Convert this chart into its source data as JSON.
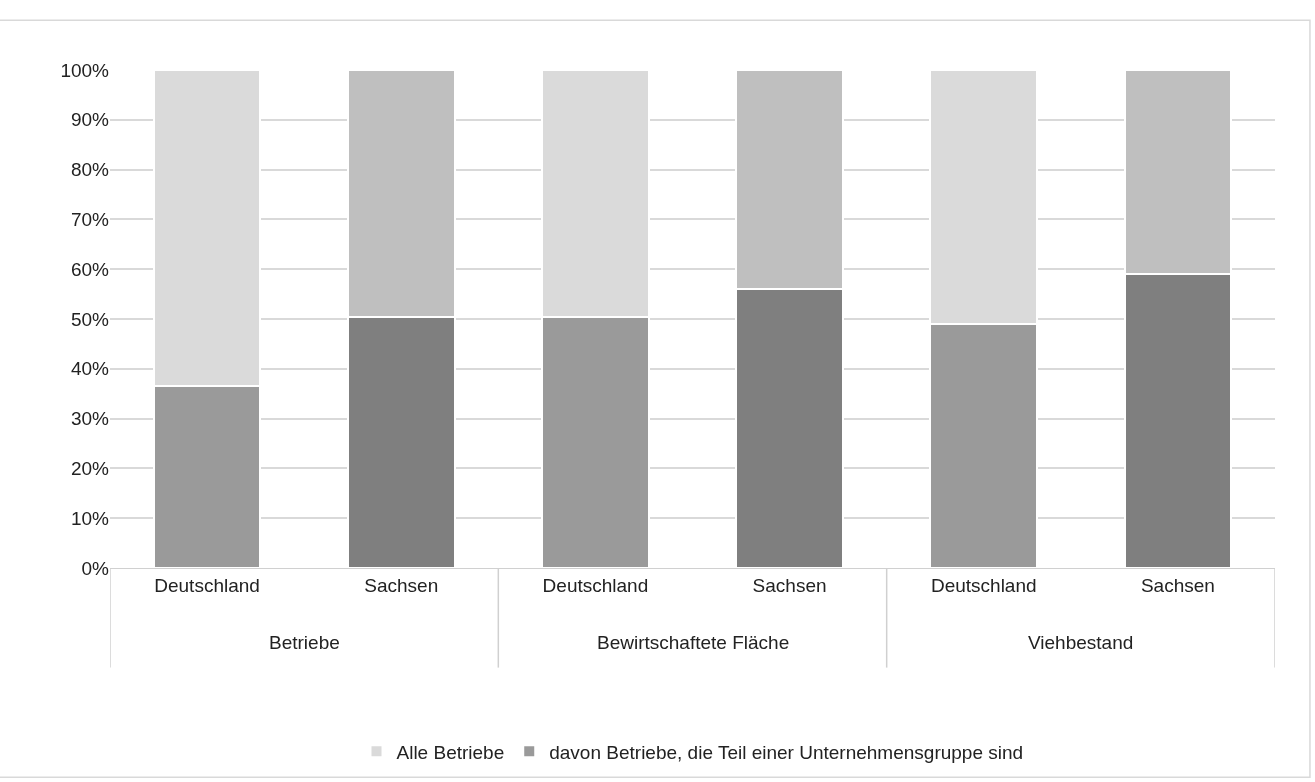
{
  "chart_data": {
    "type": "bar",
    "stacked": true,
    "categories": [
      "Deutschland",
      "Sachsen",
      "Deutschland",
      "Sachsen",
      "Deutschland",
      "Sachsen"
    ],
    "series": [
      {
        "name": "davon Betriebe, die Teil einer Unternehmensgruppe sind",
        "colors": [
          "#9a9a9a",
          "#7f7f7f",
          "#9a9a9a",
          "#7f7f7f",
          "#9a9a9a",
          "#7f7f7f"
        ],
        "values": [
          36.5,
          50.5,
          50.5,
          56,
          49,
          59
        ]
      },
      {
        "name": "Alle Betriebe",
        "colors": [
          "#dadada",
          "#bfbfbf",
          "#dadada",
          "#bfbfbf",
          "#dadada",
          "#bfbfbf"
        ],
        "values": [
          63.5,
          49.5,
          49.5,
          44,
          51,
          41
        ]
      }
    ],
    "annotations": [
      "Betriebe",
      "Bewirtschaftete Fläche",
      "Viehbestand"
    ],
    "ylim": [
      0,
      100
    ],
    "yticks": [
      {
        "value": 0,
        "label": "0%"
      },
      {
        "value": 10,
        "label": "10%"
      },
      {
        "value": 20,
        "label": "20%"
      },
      {
        "value": 30,
        "label": "30%"
      },
      {
        "value": 40,
        "label": "40%"
      },
      {
        "value": 50,
        "label": "50%"
      },
      {
        "value": 60,
        "label": "60%"
      },
      {
        "value": 70,
        "label": "70%"
      },
      {
        "value": 80,
        "label": "80%"
      },
      {
        "value": 90,
        "label": "90%"
      },
      {
        "value": 100,
        "label": "100%"
      }
    ],
    "grid": "y",
    "legend": "bottom"
  }
}
